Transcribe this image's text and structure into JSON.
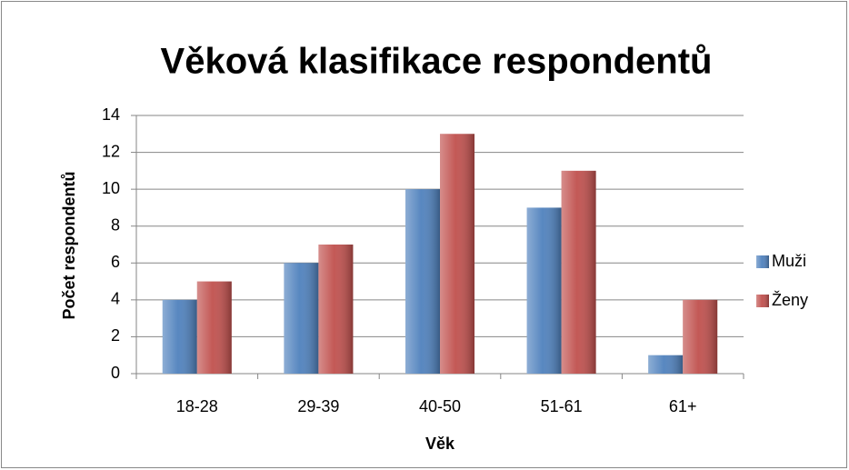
{
  "chart_data": {
    "type": "bar",
    "title": "Věková klasifikace respondentů",
    "x_label": "Věk",
    "y_label": "Počet respondentů",
    "categories": [
      "18-28",
      "29-39",
      "40-50",
      "51-61",
      "61+"
    ],
    "series": [
      {
        "name": "Muži",
        "color": "#4f81bd",
        "values": [
          4,
          6,
          10,
          9,
          1
        ]
      },
      {
        "name": "Ženy",
        "color": "#c0504d",
        "values": [
          5,
          7,
          13,
          11,
          4
        ]
      }
    ],
    "ylim": [
      0,
      14
    ],
    "yticks": [
      0,
      2,
      4,
      6,
      8,
      10,
      12,
      14
    ],
    "grid": true,
    "legend": "right"
  }
}
